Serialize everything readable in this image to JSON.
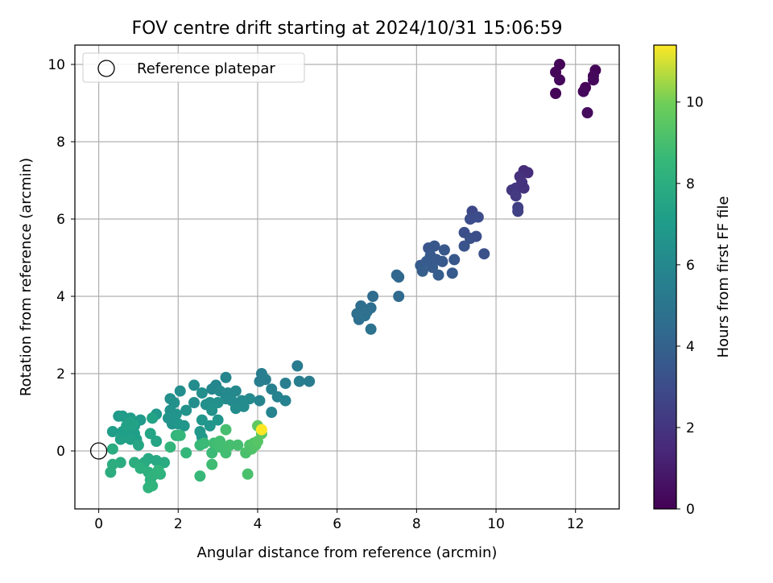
{
  "chart_data": {
    "type": "scatter",
    "title": "FOV centre drift starting at 2024/10/31 15:06:59",
    "xlabel": "Angular distance from reference (arcmin)",
    "ylabel": "Rotation from reference (arcmin)",
    "xlim": [
      -0.6,
      13.1
    ],
    "ylim": [
      -1.5,
      10.5
    ],
    "xticks": [
      0,
      2,
      4,
      6,
      8,
      10,
      12
    ],
    "yticks": [
      0,
      2,
      4,
      6,
      8,
      10
    ],
    "grid": true,
    "legend": {
      "position": "top-left",
      "entries": [
        "Reference platepar"
      ]
    },
    "reference_point": {
      "x": 0,
      "y": 0
    },
    "colorbar": {
      "label": "Hours from first FF file",
      "colormap": "viridis",
      "range": [
        0,
        11.4
      ],
      "ticks": [
        0,
        2,
        4,
        6,
        8,
        10
      ]
    },
    "series": [
      {
        "points": [
          [
            11.6,
            10.0,
            0.1
          ],
          [
            11.5,
            9.8,
            0.2
          ],
          [
            11.6,
            9.6,
            0.3
          ],
          [
            11.5,
            9.25,
            0.2
          ],
          [
            12.5,
            9.85,
            0.15
          ],
          [
            12.45,
            9.7,
            0.25
          ],
          [
            12.45,
            9.6,
            0.3
          ],
          [
            12.25,
            9.4,
            0.2
          ],
          [
            12.2,
            9.3,
            0.3
          ],
          [
            12.3,
            8.75,
            0.4
          ],
          [
            10.7,
            7.25,
            1.6
          ],
          [
            10.8,
            7.2,
            1.7
          ],
          [
            10.6,
            7.1,
            1.8
          ],
          [
            10.65,
            6.95,
            1.9
          ],
          [
            10.5,
            6.8,
            2.0
          ],
          [
            10.4,
            6.75,
            2.1
          ],
          [
            10.7,
            6.8,
            1.9
          ],
          [
            10.5,
            6.6,
            2.2
          ],
          [
            10.55,
            6.3,
            2.4
          ],
          [
            10.55,
            6.2,
            2.5
          ],
          [
            9.4,
            6.2,
            2.8
          ],
          [
            9.45,
            6.05,
            2.9
          ],
          [
            9.55,
            6.05,
            3.0
          ],
          [
            9.35,
            6.0,
            3.0
          ],
          [
            9.2,
            5.65,
            3.1
          ],
          [
            9.35,
            5.5,
            3.2
          ],
          [
            9.5,
            5.55,
            3.1
          ],
          [
            9.2,
            5.3,
            3.3
          ],
          [
            9.7,
            5.1,
            3.2
          ],
          [
            8.3,
            5.25,
            3.4
          ],
          [
            8.45,
            5.3,
            3.5
          ],
          [
            8.7,
            5.2,
            3.5
          ],
          [
            8.35,
            5.05,
            3.6
          ],
          [
            8.5,
            4.95,
            3.6
          ],
          [
            8.25,
            4.9,
            3.7
          ],
          [
            8.1,
            4.8,
            3.7
          ],
          [
            8.15,
            4.65,
            3.8
          ],
          [
            8.65,
            4.9,
            3.6
          ],
          [
            8.4,
            4.75,
            3.7
          ],
          [
            8.95,
            4.95,
            3.5
          ],
          [
            8.55,
            4.55,
            3.8
          ],
          [
            8.9,
            4.6,
            3.7
          ],
          [
            7.5,
            4.55,
            4.3
          ],
          [
            7.55,
            4.5,
            4.3
          ],
          [
            7.55,
            4.0,
            4.4
          ],
          [
            6.9,
            4.0,
            4.5
          ],
          [
            6.6,
            3.75,
            4.6
          ],
          [
            6.85,
            3.7,
            4.6
          ],
          [
            6.5,
            3.55,
            4.7
          ],
          [
            6.55,
            3.4,
            4.7
          ],
          [
            6.7,
            3.5,
            4.8
          ],
          [
            6.75,
            3.6,
            4.7
          ],
          [
            6.85,
            3.15,
            4.8
          ],
          [
            5.0,
            2.2,
            5.3
          ],
          [
            5.3,
            1.8,
            5.3
          ],
          [
            5.05,
            1.8,
            5.4
          ],
          [
            4.1,
            2.0,
            5.4
          ],
          [
            4.2,
            1.85,
            5.5
          ],
          [
            4.05,
            1.8,
            5.5
          ],
          [
            4.35,
            1.6,
            5.6
          ],
          [
            4.7,
            1.75,
            5.5
          ],
          [
            4.5,
            1.4,
            5.7
          ],
          [
            4.7,
            1.3,
            5.7
          ],
          [
            4.05,
            1.3,
            5.8
          ],
          [
            4.35,
            1.0,
            5.8
          ],
          [
            3.2,
            1.9,
            5.9
          ],
          [
            2.95,
            1.7,
            5.9
          ],
          [
            2.85,
            1.6,
            5.9
          ],
          [
            3.05,
            1.55,
            6.0
          ],
          [
            3.25,
            1.5,
            6.0
          ],
          [
            3.45,
            1.55,
            6.0
          ],
          [
            3.35,
            1.3,
            6.1
          ],
          [
            3.2,
            1.35,
            6.1
          ],
          [
            3.6,
            1.3,
            6.1
          ],
          [
            3.8,
            1.35,
            6.1
          ],
          [
            3.45,
            1.1,
            6.2
          ],
          [
            3.65,
            1.15,
            6.2
          ],
          [
            2.4,
            1.7,
            6.2
          ],
          [
            2.6,
            1.5,
            6.3
          ],
          [
            2.05,
            1.55,
            6.3
          ],
          [
            1.8,
            1.35,
            6.4
          ],
          [
            1.9,
            1.25,
            6.4
          ],
          [
            2.4,
            1.25,
            6.3
          ],
          [
            2.7,
            1.2,
            6.4
          ],
          [
            2.8,
            1.25,
            6.4
          ],
          [
            3.0,
            1.25,
            6.4
          ],
          [
            2.2,
            1.05,
            6.5
          ],
          [
            2.85,
            1.05,
            6.5
          ],
          [
            1.8,
            1.05,
            6.5
          ],
          [
            1.95,
            0.95,
            6.6
          ],
          [
            1.75,
            0.85,
            6.6
          ],
          [
            1.85,
            0.7,
            6.6
          ],
          [
            2.0,
            0.7,
            6.7
          ],
          [
            2.15,
            0.65,
            6.7
          ],
          [
            2.6,
            0.8,
            6.7
          ],
          [
            2.8,
            0.65,
            6.7
          ],
          [
            3.0,
            0.8,
            6.7
          ],
          [
            2.55,
            0.5,
            6.8
          ],
          [
            2.0,
            0.4,
            6.8
          ],
          [
            2.6,
            0.35,
            6.8
          ],
          [
            1.45,
            0.95,
            6.8
          ],
          [
            1.05,
            0.8,
            6.9
          ],
          [
            1.35,
            0.85,
            6.9
          ],
          [
            0.5,
            0.9,
            6.9
          ],
          [
            0.6,
            0.9,
            7.0
          ],
          [
            0.8,
            0.85,
            7.0
          ],
          [
            0.75,
            0.6,
            7.0
          ],
          [
            0.9,
            0.65,
            7.0
          ],
          [
            0.7,
            0.5,
            7.1
          ],
          [
            0.6,
            0.5,
            7.1
          ],
          [
            0.35,
            0.5,
            7.1
          ],
          [
            0.9,
            0.45,
            7.2
          ],
          [
            0.95,
            0.3,
            7.2
          ],
          [
            0.65,
            0.35,
            7.2
          ],
          [
            0.8,
            0.3,
            7.3
          ],
          [
            0.55,
            0.3,
            7.3
          ],
          [
            0.7,
            0.65,
            7.3
          ],
          [
            0.85,
            0.7,
            7.4
          ],
          [
            0.8,
            0.75,
            7.3
          ],
          [
            1.35,
            0.85,
            7.4
          ],
          [
            1.3,
            0.45,
            7.5
          ],
          [
            1.45,
            0.25,
            7.5
          ],
          [
            1.0,
            0.15,
            7.6
          ],
          [
            1.25,
            -0.2,
            7.7
          ],
          [
            1.45,
            -0.25,
            7.7
          ],
          [
            1.65,
            -0.3,
            7.8
          ],
          [
            1.15,
            -0.3,
            7.8
          ],
          [
            0.35,
            0.05,
            7.9
          ],
          [
            0.55,
            -0.3,
            7.9
          ],
          [
            0.35,
            -0.35,
            8.0
          ],
          [
            0.3,
            -0.55,
            8.0
          ],
          [
            0.9,
            -0.3,
            8.0
          ],
          [
            1.05,
            -0.45,
            8.1
          ],
          [
            1.25,
            -0.55,
            8.1
          ],
          [
            1.35,
            -0.65,
            8.2
          ],
          [
            1.3,
            -0.75,
            8.2
          ],
          [
            1.55,
            -0.6,
            8.2
          ],
          [
            1.5,
            -0.5,
            8.3
          ],
          [
            1.25,
            -0.95,
            8.3
          ],
          [
            1.35,
            -0.9,
            8.3
          ],
          [
            1.8,
            0.1,
            8.4
          ],
          [
            1.95,
            0.4,
            8.4
          ],
          [
            2.05,
            0.4,
            8.5
          ],
          [
            2.2,
            -0.05,
            8.5
          ],
          [
            2.55,
            -0.65,
            8.6
          ],
          [
            2.55,
            0.15,
            8.6
          ],
          [
            2.65,
            0.2,
            8.7
          ],
          [
            2.85,
            -0.05,
            8.7
          ],
          [
            2.9,
            0.2,
            8.8
          ],
          [
            2.85,
            -0.35,
            8.8
          ],
          [
            3.05,
            0.1,
            8.9
          ],
          [
            3.2,
            -0.05,
            8.9
          ],
          [
            3.2,
            0.55,
            9.0
          ],
          [
            3.05,
            0.25,
            8.9
          ],
          [
            3.3,
            0.15,
            9.0
          ],
          [
            3.5,
            0.15,
            9.0
          ],
          [
            3.7,
            -0.05,
            9.1
          ],
          [
            3.75,
            -0.6,
            9.1
          ],
          [
            3.8,
            0.15,
            9.2
          ],
          [
            3.85,
            0.05,
            9.2
          ],
          [
            3.9,
            0.2,
            9.3
          ],
          [
            3.95,
            0.15,
            9.3
          ],
          [
            4.0,
            0.25,
            9.4
          ],
          [
            4.1,
            0.45,
            9.5
          ],
          [
            4.0,
            0.65,
            9.6
          ],
          [
            4.1,
            0.55,
            11.4
          ]
        ]
      }
    ]
  }
}
